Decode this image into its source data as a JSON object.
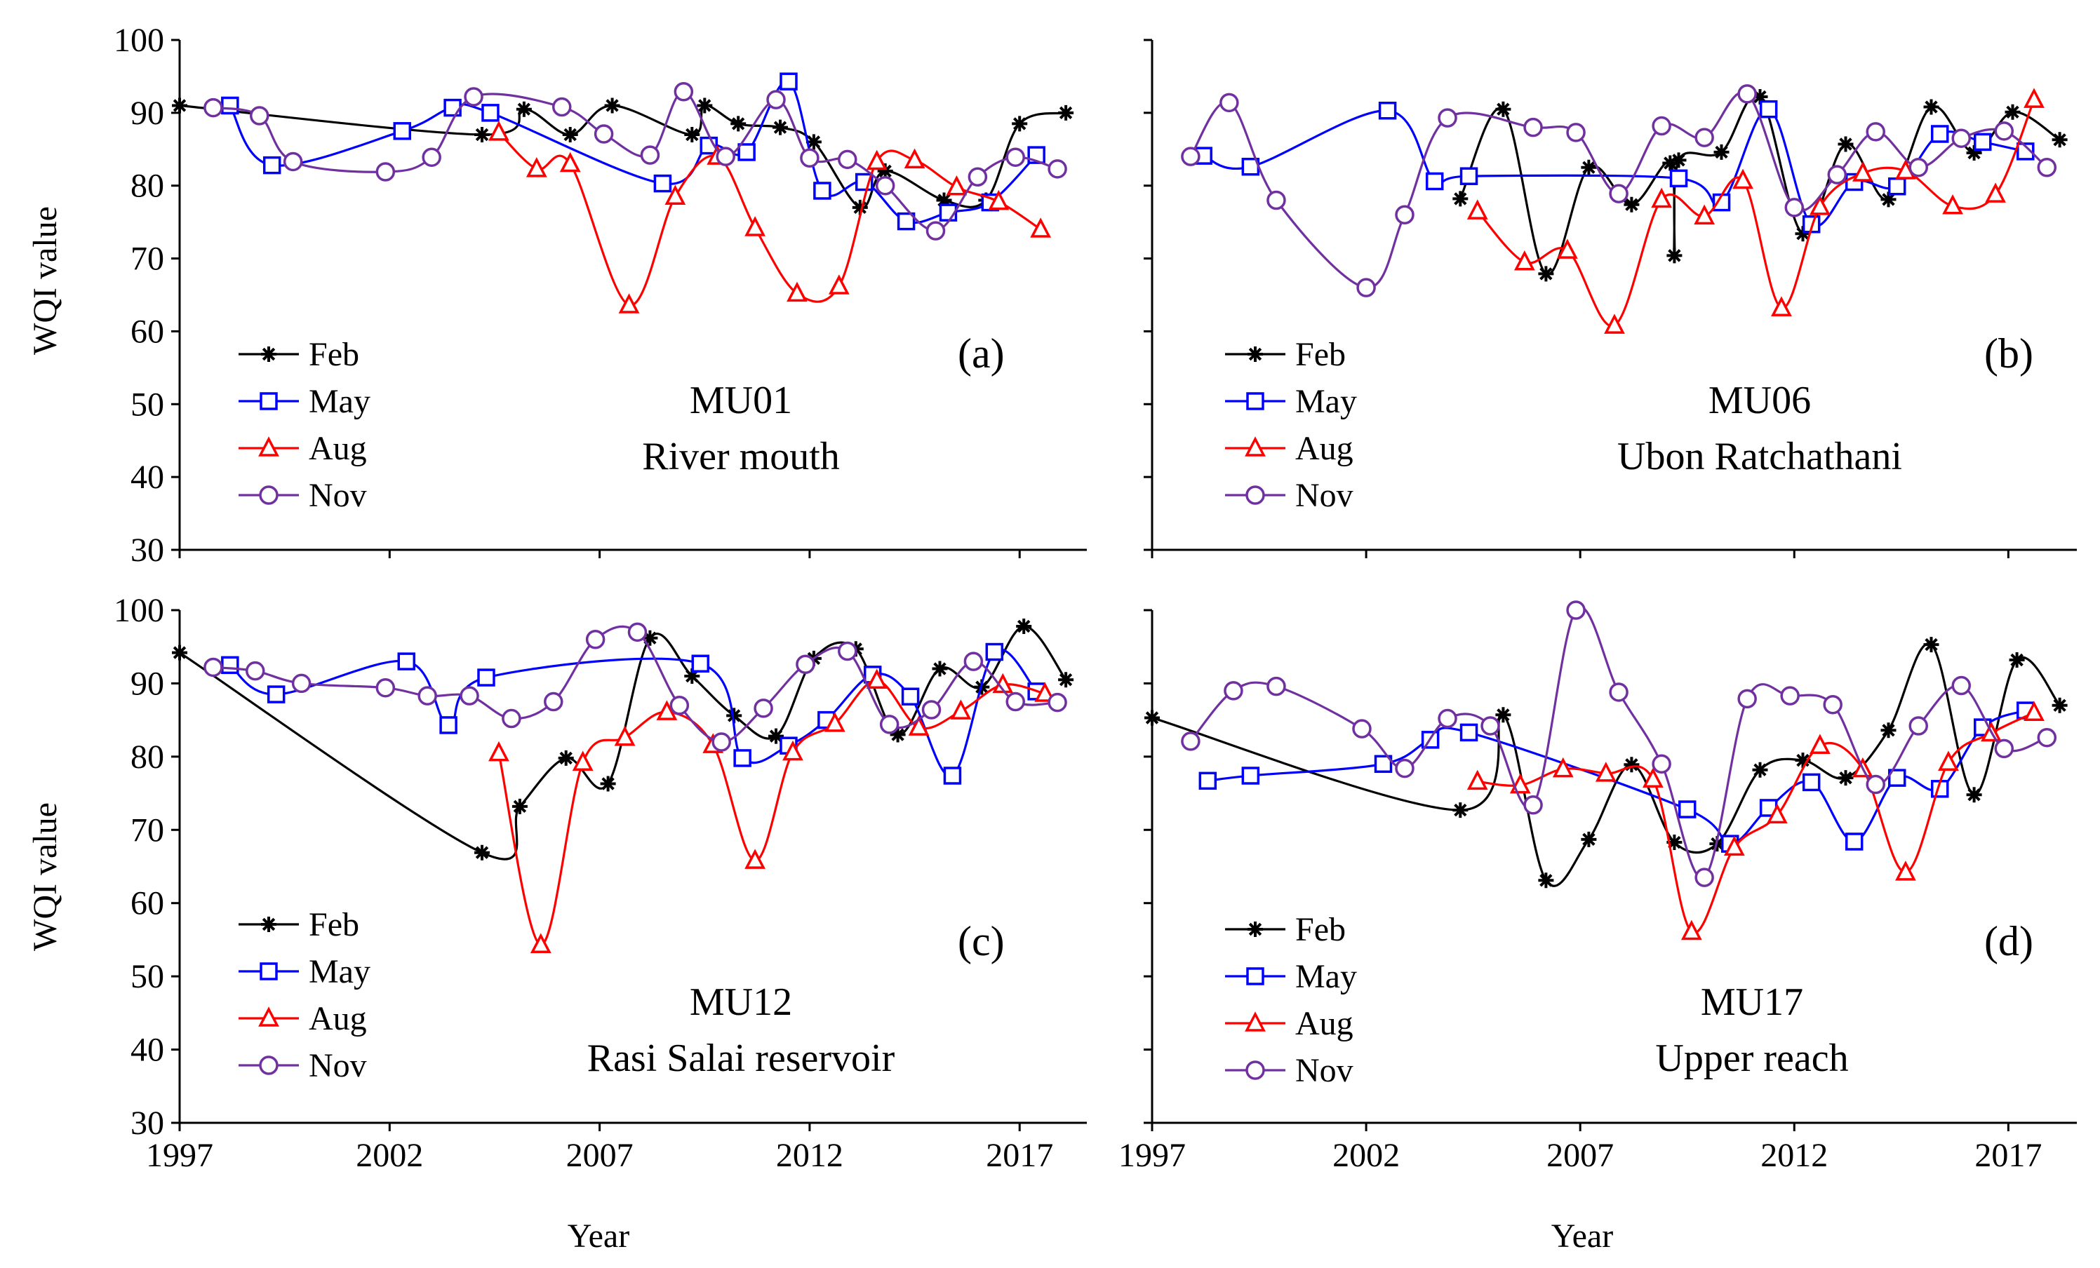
{
  "figure": {
    "xlabel": "Year",
    "ylabel": "WQI value"
  },
  "chart_data": [
    {
      "type": "line",
      "panel": "(a)",
      "site": "MU01",
      "location": "River mouth",
      "xlabel": "Year",
      "ylabel": "WQI value",
      "xlim": [
        1997,
        2018.6
      ],
      "ylim": [
        30,
        100
      ],
      "xticks": [
        1997,
        2002,
        2007,
        2012,
        2017
      ],
      "yticks": [
        30,
        40,
        50,
        60,
        70,
        80,
        90,
        100
      ],
      "legend_position": "lower-left",
      "series": [
        {
          "name": "Feb",
          "color": "#000000",
          "marker": "star",
          "x": [
            1997.0,
            2004.2,
            2005.2,
            2006.3,
            2007.3,
            2009.2,
            2009.5,
            2010.3,
            2011.3,
            2012.1,
            2013.2,
            2013.8,
            2015.2,
            2016.2,
            2017.0,
            2018.1
          ],
          "y": [
            91,
            87,
            90.5,
            87,
            91,
            87,
            91,
            88.5,
            88,
            86,
            77,
            82,
            78,
            78,
            88.5,
            90
          ]
        },
        {
          "name": "May",
          "color": "#0000ff",
          "marker": "square",
          "x": [
            1998.2,
            1999.2,
            2002.3,
            2003.5,
            2004.4,
            2008.5,
            2009.6,
            2010.5,
            2011.5,
            2012.3,
            2013.3,
            2014.3,
            2015.3,
            2016.3,
            2017.4
          ],
          "y": [
            91,
            82.8,
            87.5,
            90.7,
            90,
            80.3,
            85.5,
            84.6,
            94.3,
            79.3,
            80.5,
            75.1,
            76.3,
            77.7,
            84.2
          ]
        },
        {
          "name": "Aug",
          "color": "#ff0000",
          "marker": "triangle",
          "x": [
            2004.6,
            2005.5,
            2006.3,
            2007.7,
            2008.8,
            2009.8,
            2010.7,
            2011.7,
            2012.7,
            2013.6,
            2014.5,
            2015.5,
            2016.5,
            2017.5
          ],
          "y": [
            87.3,
            82.3,
            83,
            63.6,
            78.5,
            84,
            74.2,
            65.2,
            66.2,
            83.3,
            83.5,
            79.8,
            77.8,
            74
          ]
        },
        {
          "name": "Nov",
          "color": "#7030a0",
          "marker": "circle",
          "x": [
            1997.8,
            1998.9,
            1999.7,
            2001.9,
            2003.0,
            2004.0,
            2006.1,
            2007.1,
            2008.2,
            2009.0,
            2010.0,
            2011.2,
            2012.0,
            2012.9,
            2013.8,
            2015.0,
            2016.0,
            2016.9,
            2017.9
          ],
          "y": [
            90.7,
            89.6,
            83.3,
            81.9,
            83.9,
            92.2,
            90.8,
            87.1,
            84.2,
            92.9,
            84,
            91.8,
            83.8,
            83.6,
            80,
            73.8,
            81.2,
            83.9,
            82.3
          ]
        }
      ]
    },
    {
      "type": "line",
      "panel": "(b)",
      "site": "MU06",
      "location": "Ubon Ratchathani",
      "xlabel": "Year",
      "ylabel": "",
      "xlim": [
        1997,
        2018.6
      ],
      "ylim": [
        30,
        100
      ],
      "xticks": [
        1997,
        2002,
        2007,
        2012,
        2017
      ],
      "yticks": [
        30,
        40,
        50,
        60,
        70,
        80,
        90,
        100
      ],
      "legend_position": "lower-left",
      "series": [
        {
          "name": "Feb",
          "color": "#000000",
          "marker": "star",
          "x": [
            2004.2,
            2005.2,
            2006.2,
            2007.2,
            2008.2,
            2009.1,
            2009.2,
            2009.3,
            2010.3,
            2011.2,
            2012.2,
            2013.2,
            2014.2,
            2015.2,
            2016.2,
            2017.1,
            2018.2
          ],
          "y": [
            78.2,
            90.5,
            67.9,
            82.5,
            77.4,
            83.1,
            70.4,
            83.5,
            84.6,
            92.2,
            73.4,
            85.7,
            78.1,
            90.8,
            84.5,
            90.1,
            86.3
          ]
        },
        {
          "name": "May",
          "color": "#0000ff",
          "marker": "square",
          "x": [
            1998.2,
            1999.3,
            2002.5,
            2003.6,
            2004.4,
            2009.3,
            2010.3,
            2011.4,
            2012.4,
            2013.4,
            2014.4,
            2015.4,
            2016.4,
            2017.4
          ],
          "y": [
            84.1,
            82.6,
            90.3,
            80.6,
            81.3,
            81,
            77.7,
            90.5,
            74.7,
            80.5,
            79.9,
            87.1,
            86,
            84.7
          ]
        },
        {
          "name": "Aug",
          "color": "#ff0000",
          "marker": "triangle",
          "x": [
            2004.6,
            2005.7,
            2006.7,
            2007.8,
            2008.9,
            2009.9,
            2010.8,
            2011.7,
            2012.6,
            2013.6,
            2014.6,
            2015.7,
            2016.7,
            2017.6
          ],
          "y": [
            76.5,
            69.5,
            71.1,
            60.8,
            78.1,
            75.8,
            80.7,
            63.2,
            77.1,
            81.7,
            82,
            77.2,
            78.8,
            91.8
          ]
        },
        {
          "name": "Nov",
          "color": "#7030a0",
          "marker": "circle",
          "x": [
            1997.9,
            1998.8,
            1999.9,
            2002.0,
            2002.9,
            2003.9,
            2005.9,
            2006.9,
            2007.9,
            2008.9,
            2009.9,
            2010.9,
            2012.0,
            2013.0,
            2013.9,
            2014.9,
            2015.9,
            2016.9,
            2017.9
          ],
          "y": [
            84,
            91.4,
            78,
            66,
            76,
            89.3,
            88,
            87.3,
            78.9,
            88.2,
            86.6,
            92.6,
            77,
            81.5,
            87.4,
            82.5,
            86.5,
            87.5,
            82.5
          ]
        }
      ]
    },
    {
      "type": "line",
      "panel": "(c)",
      "site": "MU12",
      "location": "Rasi Salai reservoir",
      "xlabel": "Year",
      "ylabel": "WQI value",
      "xlim": [
        1997,
        2018.6
      ],
      "ylim": [
        30,
        100
      ],
      "xticks": [
        1997,
        2002,
        2007,
        2012,
        2017
      ],
      "yticks": [
        30,
        40,
        50,
        60,
        70,
        80,
        90,
        100
      ],
      "legend_position": "lower-left",
      "series": [
        {
          "name": "Feb",
          "color": "#000000",
          "marker": "star",
          "x": [
            1997.0,
            2004.2,
            2005.1,
            2006.2,
            2007.2,
            2008.2,
            2009.2,
            2010.2,
            2011.2,
            2012.1,
            2013.1,
            2014.1,
            2015.1,
            2016.1,
            2017.1,
            2018.1
          ],
          "y": [
            94.2,
            66.9,
            73.2,
            79.8,
            76.3,
            96.2,
            91,
            85.6,
            82.8,
            93.4,
            94.7,
            83,
            92,
            89.5,
            97.8,
            90.5
          ]
        },
        {
          "name": "May",
          "color": "#0000ff",
          "marker": "square",
          "x": [
            1998.2,
            1999.3,
            2002.4,
            2003.4,
            2004.3,
            2009.4,
            2010.4,
            2011.5,
            2012.4,
            2013.5,
            2014.4,
            2015.4,
            2016.4,
            2017.4
          ],
          "y": [
            92.5,
            88.5,
            93,
            84.3,
            90.8,
            92.7,
            79.8,
            81.5,
            85,
            91.2,
            88.2,
            77.4,
            94.3,
            88.9
          ]
        },
        {
          "name": "Aug",
          "color": "#ff0000",
          "marker": "triangle",
          "x": [
            2004.6,
            2005.6,
            2006.6,
            2007.6,
            2008.6,
            2009.7,
            2010.7,
            2011.6,
            2012.6,
            2013.6,
            2014.6,
            2015.6,
            2016.6,
            2017.6
          ],
          "y": [
            80.5,
            54.3,
            79.2,
            82.6,
            86.1,
            81.6,
            65.8,
            80.6,
            84.5,
            90.4,
            84,
            86.2,
            89.8,
            88.6
          ]
        },
        {
          "name": "Nov",
          "color": "#7030a0",
          "marker": "circle",
          "x": [
            1997.8,
            1998.8,
            1999.9,
            2001.9,
            2002.9,
            2003.9,
            2004.9,
            2005.9,
            2006.9,
            2007.9,
            2008.9,
            2009.9,
            2010.9,
            2011.9,
            2012.9,
            2013.9,
            2014.9,
            2015.9,
            2016.9,
            2017.9
          ],
          "y": [
            92.2,
            91.7,
            90,
            89.4,
            88.3,
            88.3,
            85.2,
            87.5,
            96,
            97,
            87,
            82,
            86.6,
            92.6,
            94.4,
            84.4,
            86.4,
            93,
            87.5,
            87.4
          ]
        }
      ]
    },
    {
      "type": "line",
      "panel": "(d)",
      "site": "MU17",
      "location": "Upper reach",
      "xlabel": "Year",
      "ylabel": "",
      "xlim": [
        1997,
        2018.6
      ],
      "ylim": [
        30,
        100
      ],
      "xticks": [
        1997,
        2002,
        2007,
        2012,
        2017
      ],
      "yticks": [
        30,
        40,
        50,
        60,
        70,
        80,
        90,
        100
      ],
      "legend_position": "lower-left",
      "series": [
        {
          "name": "Feb",
          "color": "#000000",
          "marker": "star",
          "x": [
            1997.0,
            2004.2,
            2005.2,
            2006.2,
            2007.2,
            2008.2,
            2009.2,
            2010.2,
            2011.2,
            2012.2,
            2013.2,
            2014.2,
            2015.2,
            2016.2,
            2017.2,
            2018.2
          ],
          "y": [
            85.3,
            72.7,
            85.7,
            63.1,
            68.7,
            78.9,
            68.3,
            68.1,
            78.2,
            79.5,
            77.1,
            83.6,
            95.3,
            74.8,
            93.2,
            87
          ]
        },
        {
          "name": "May",
          "color": "#0000ff",
          "marker": "square",
          "x": [
            1998.3,
            1999.3,
            2002.4,
            2003.5,
            2004.4,
            2009.5,
            2010.5,
            2011.4,
            2012.4,
            2013.4,
            2014.4,
            2015.4,
            2016.4,
            2017.4
          ],
          "y": [
            76.7,
            77.4,
            79,
            82.3,
            83.3,
            72.8,
            68.1,
            73,
            76.5,
            68.4,
            77.1,
            75.6,
            84,
            86.3
          ]
        },
        {
          "name": "Aug",
          "color": "#ff0000",
          "marker": "triangle",
          "x": [
            2004.6,
            2005.6,
            2006.6,
            2007.6,
            2008.7,
            2009.6,
            2010.6,
            2011.6,
            2012.6,
            2013.6,
            2014.6,
            2015.6,
            2016.6,
            2017.6
          ],
          "y": [
            76.6,
            76.1,
            78.3,
            77.7,
            76.9,
            56.1,
            67.6,
            72,
            81.5,
            78.3,
            64.2,
            79.2,
            83.2,
            86
          ]
        },
        {
          "name": "Nov",
          "color": "#7030a0",
          "marker": "circle",
          "x": [
            1997.9,
            1998.9,
            1999.9,
            2001.9,
            2002.9,
            2003.9,
            2004.9,
            2005.9,
            2006.9,
            2007.9,
            2008.9,
            2009.9,
            2010.9,
            2011.9,
            2012.9,
            2013.9,
            2014.9,
            2015.9,
            2016.9,
            2017.9
          ],
          "y": [
            82.1,
            89,
            89.6,
            83.8,
            78.4,
            85.2,
            84.2,
            73.4,
            100,
            88.8,
            79,
            63.5,
            87.9,
            88.3,
            87.1,
            76.2,
            84.2,
            89.7,
            81.1,
            82.6
          ]
        }
      ]
    }
  ]
}
